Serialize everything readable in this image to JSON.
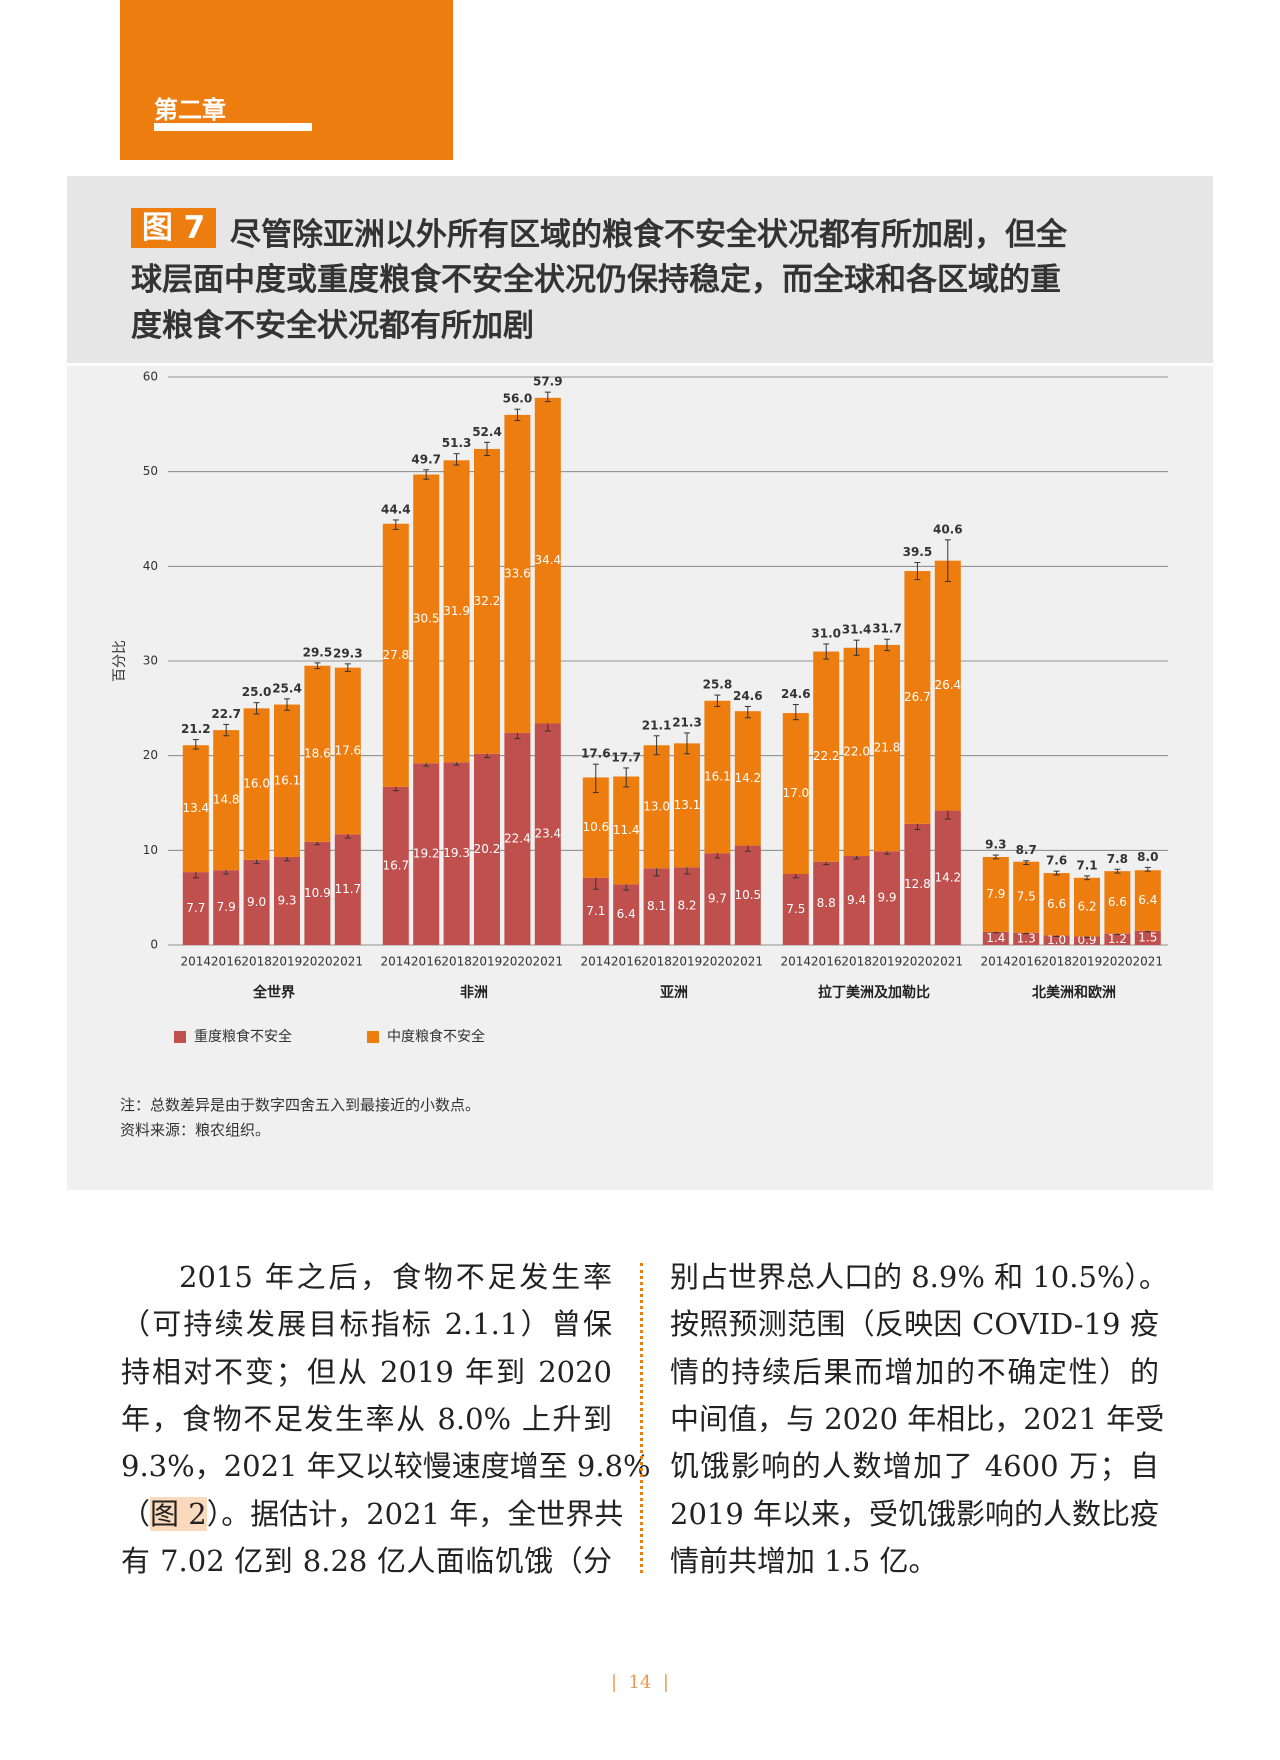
{
  "header": {
    "chapter": "第二章"
  },
  "figure": {
    "label": "图 7",
    "title_lines": [
      "尽管除亚洲以外所有区域的粮食不安全状况都有所加剧，但全",
      "球层面中度或重度粮食不安全状况仍保持稳定，而全球和各区域的重",
      "度粮食不安全状况都有所加剧"
    ]
  },
  "chart_data": {
    "type": "bar",
    "stacked": true,
    "y_label": "百分比",
    "groups": [
      "全世界",
      "非洲",
      "亚洲",
      "拉丁美洲及加勒比",
      "北美洲和欧洲"
    ],
    "categories": [
      "2014",
      "2016",
      "2018",
      "2019",
      "2020",
      "2021",
      "2014",
      "2016",
      "2018",
      "2019",
      "2020",
      "2021",
      "2014",
      "2016",
      "2018",
      "2019",
      "2020",
      "2021",
      "2014",
      "2016",
      "2018",
      "2019",
      "2020",
      "2021",
      "2014",
      "2016",
      "2018",
      "2019",
      "2020",
      "2021"
    ],
    "series": [
      {
        "name": "重度粮食不安全",
        "color": "#c0504d",
        "values": [
          7.7,
          7.9,
          9.0,
          9.3,
          10.9,
          11.7,
          16.7,
          19.2,
          19.3,
          20.2,
          22.4,
          23.4,
          7.1,
          6.4,
          8.1,
          8.2,
          9.7,
          10.5,
          7.5,
          8.8,
          9.4,
          9.9,
          12.8,
          14.2,
          1.4,
          1.3,
          1.0,
          0.9,
          1.2,
          1.5
        ],
        "value_labels": [
          "7.7",
          "7.9",
          "9.0",
          "9.3",
          "10.9",
          "11.7",
          "16.7",
          "19.2",
          "19.3",
          "20.2",
          "22.4",
          "23.4",
          "7.1",
          "6.4",
          "8.1",
          "8.2",
          "9.7",
          "10.5",
          "7.5",
          "8.8",
          "9.4",
          "9.9",
          "12.8",
          "14.2",
          "1.4",
          "1.3",
          "1.0",
          "0.9",
          "1.2",
          "1.5"
        ],
        "errors": [
          0.6,
          0.4,
          0.4,
          0.4,
          0.3,
          0.4,
          0.4,
          0.3,
          0.3,
          0.4,
          0.6,
          0.8,
          1.2,
          0.6,
          0.8,
          0.7,
          0.5,
          0.6,
          0.4,
          0.3,
          0.3,
          0.3,
          0.6,
          0.9,
          0.1,
          0.1,
          0.1,
          0.1,
          0.1,
          0.1
        ]
      },
      {
        "name": "中度粮食不安全",
        "color": "#ee7d10",
        "values": [
          13.4,
          14.8,
          16.0,
          16.1,
          18.6,
          17.6,
          27.8,
          30.5,
          31.9,
          32.2,
          33.6,
          34.4,
          10.6,
          11.4,
          13.0,
          13.1,
          16.1,
          14.2,
          17.0,
          22.2,
          22.0,
          21.8,
          26.7,
          26.4,
          7.9,
          7.5,
          6.6,
          6.2,
          6.6,
          6.4
        ],
        "value_labels": [
          "13.4",
          "14.8",
          "16.0",
          "16.1",
          "18.6",
          "17.6",
          "27.8",
          "30.5",
          "31.9",
          "32.2",
          "33.6",
          "34.4",
          "10.6",
          "11.4",
          "13.0",
          "13.1",
          "16.1",
          "14.2",
          "17.0",
          "22.2",
          "22.0",
          "21.8",
          "26.7",
          "26.4",
          "7.9",
          "7.5",
          "6.6",
          "6.2",
          "6.6",
          "6.4"
        ]
      }
    ],
    "totals": [
      21.2,
      22.7,
      25.0,
      25.4,
      29.5,
      29.3,
      44.4,
      49.7,
      51.3,
      52.4,
      56.0,
      57.9,
      17.6,
      17.7,
      21.1,
      21.3,
      25.8,
      24.6,
      24.6,
      31.0,
      31.4,
      31.7,
      39.5,
      40.6,
      9.3,
      8.7,
      7.6,
      7.1,
      7.8,
      8.0
    ],
    "total_labels": [
      "21.2",
      "22.7",
      "25.0",
      "25.4",
      "29.5",
      "29.3",
      "44.4",
      "49.7",
      "51.3",
      "52.4",
      "56.0",
      "57.9",
      "17.6",
      "17.7",
      "21.1",
      "21.3",
      "25.8",
      "24.6",
      "24.6",
      "31.0",
      "31.4",
      "31.7",
      "39.5",
      "40.6",
      "9.3",
      "8.7",
      "7.6",
      "7.1",
      "7.8",
      "8.0"
    ],
    "total_errors": [
      0.5,
      0.6,
      0.6,
      0.6,
      0.3,
      0.4,
      0.5,
      0.5,
      0.6,
      0.7,
      0.6,
      0.5,
      1.5,
      1.0,
      1.0,
      1.1,
      0.6,
      0.6,
      0.8,
      0.8,
      0.8,
      0.6,
      0.9,
      2.2,
      0.2,
      0.2,
      0.2,
      0.2,
      0.2,
      0.2
    ],
    "ylim": [
      0,
      60
    ],
    "yticks": [
      0,
      10,
      20,
      30,
      40,
      50,
      60
    ],
    "grid": true
  },
  "notes": [
    "注：总数差异是由于数字四舍五入到最接近的小数点。",
    "资料来源：粮农组织。"
  ],
  "body": {
    "left_lines": [
      "2015 年之后，食物不足发生率",
      "（可持续发展目标指标 2.1.1）曾保",
      "持相对不变；但从 2019 年到 2020",
      "年，食物不足发生率从 8.0% 上升到",
      "9.3%，2021 年又以较慢速度增至 9.8%",
      [
        "（",
        "图 2",
        "）。据估计，2021 年，全世界共"
      ],
      "有 7.02 亿到 8.28 亿人面临饥饿（分"
    ],
    "right_lines": [
      "别占世界总人口的 8.9% 和 10.5%）。",
      "按照预测范围（反映因 COVID-19 疫",
      "情的持续后果而增加的不确定性）的",
      "中间值，与 2020 年相比，2021 年受",
      "饥饿影响的人数增加了 4600 万；自",
      "2019 年以来，受饥饿影响的人数比疫",
      "情前共增加 1.5 亿。"
    ]
  },
  "page_number": "14"
}
